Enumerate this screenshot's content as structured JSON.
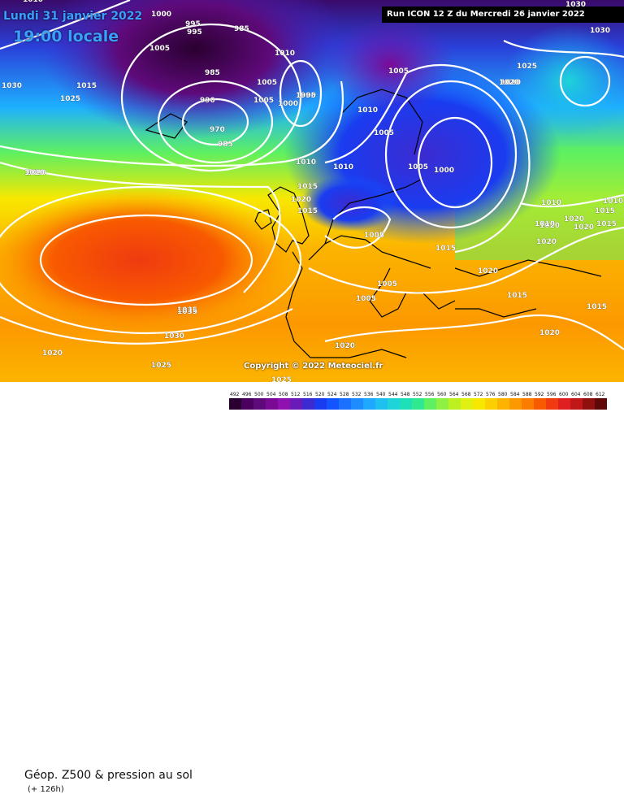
{
  "header": {
    "date": "Lundi 31 janvier 2022",
    "time": "19:00 locale",
    "run": "Run ICON 12 Z du Mercredi 26 janvier 2022"
  },
  "footer": {
    "title": "Géop. Z500 & pression au sol",
    "subtitle": "(+ 126h)",
    "copyright": "Copyright © 2022 Meteociel.fr"
  },
  "legend": {
    "ticks": [
      "492",
      "496",
      "500",
      "504",
      "508",
      "512",
      "516",
      "520",
      "524",
      "528",
      "532",
      "536",
      "540",
      "544",
      "548",
      "552",
      "556",
      "560",
      "564",
      "568",
      "572",
      "576",
      "580",
      "584",
      "588",
      "592",
      "596",
      "600",
      "604",
      "608",
      "612"
    ],
    "colors": [
      "#2a0030",
      "#4b0060",
      "#5e0a7a",
      "#7a0a96",
      "#8f12b0",
      "#6a1ab8",
      "#3c2bd0",
      "#1a3cf0",
      "#1454ff",
      "#1a70ff",
      "#1e8cff",
      "#1ea8ff",
      "#1ec0f0",
      "#1ed4d8",
      "#1ee0b8",
      "#30e890",
      "#5ef060",
      "#8ef040",
      "#bcf020",
      "#e0f010",
      "#f8e800",
      "#fcd000",
      "#fcb400",
      "#fc9800",
      "#fc7c00",
      "#f85a00",
      "#f03a10",
      "#e02020",
      "#c01818",
      "#901010",
      "#600808"
    ]
  },
  "isobars": [
    "1000",
    "995",
    "1005",
    "985",
    "1010",
    "1010",
    "1015",
    "1030",
    "1035",
    "1020",
    "995",
    "985",
    "990",
    "1000",
    "1005",
    "1005",
    "970",
    "985",
    "1000",
    "1005",
    "995",
    "1010",
    "1005",
    "1000",
    "1005",
    "1010",
    "1010",
    "1015",
    "1020",
    "1030",
    "1025",
    "1030",
    "1020",
    "1025",
    "1020",
    "1020",
    "1010",
    "1010",
    "1015",
    "1010",
    "1015",
    "1020",
    "1020",
    "1025",
    "1020",
    "1015",
    "1005",
    "1005",
    "1015",
    "1020",
    "1015",
    "1015",
    "1035",
    "1030",
    "1020",
    "1025",
    "1025",
    "1020",
    "1005",
    "1020",
    "1020",
    "1020"
  ],
  "colors": {
    "contour": "#ffffff",
    "coastline": "#000000"
  }
}
